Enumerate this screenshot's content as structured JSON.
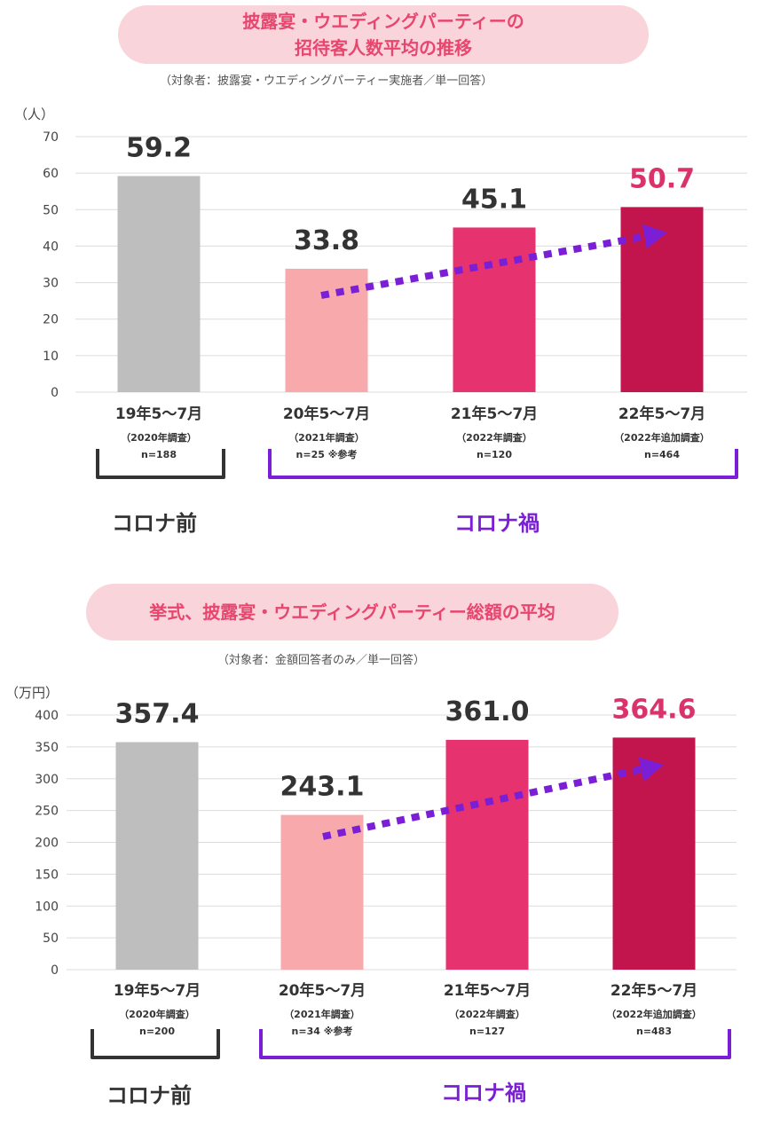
{
  "chart_data": [
    {
      "type": "bar",
      "title": [
        "披露宴・ウエディングパーティーの",
        "招待客人数平均の推移"
      ],
      "subtitle": "（対象者：披露宴・ウエディングパーティー実施者／単一回答）",
      "unit": "（人）",
      "ylim": [
        0,
        70
      ],
      "yticks": [
        0,
        10,
        20,
        30,
        40,
        50,
        60,
        70
      ],
      "categories": [
        "19年5～7月",
        "20年5～7月",
        "21年5～7月",
        "22年5～7月"
      ],
      "survey": [
        "（2020年調査）",
        "（2021年調査）",
        "（2022年調査）",
        "（2022年追加調査）"
      ],
      "n": [
        "n=188",
        "n=25 ※参考",
        "n=120",
        "n=464"
      ],
      "values": [
        59.2,
        33.8,
        45.1,
        50.7
      ],
      "value_labels": [
        "59.2",
        "33.8",
        "45.1",
        "50.7"
      ],
      "colors": [
        "#bebebe",
        "#f8a9ab",
        "#e63370",
        "#c2154e"
      ],
      "value_label_colors": [
        "#333333",
        "#333333",
        "#333333",
        "#d8336a"
      ],
      "groups": [
        "コロナ前",
        "コロナ禍"
      ],
      "group_colors": [
        "#333333",
        "#7a1fd6"
      ],
      "trend_arrow_color": "#7a1fd6",
      "grid": true
    },
    {
      "type": "bar",
      "title": [
        "挙式、披露宴・ウエディングパーティー総額の平均"
      ],
      "subtitle": "（対象者：金額回答者のみ／単一回答）",
      "unit": "（万円）",
      "ylim": [
        0,
        400
      ],
      "yticks": [
        0,
        50,
        100,
        150,
        200,
        250,
        300,
        350,
        400
      ],
      "categories": [
        "19年5～7月",
        "20年5～7月",
        "21年5～7月",
        "22年5～7月"
      ],
      "survey": [
        "（2020年調査）",
        "（2021年調査）",
        "（2022年調査）",
        "（2022年追加調査）"
      ],
      "n": [
        "n=200",
        "n=34 ※参考",
        "n=127",
        "n=483"
      ],
      "values": [
        357.4,
        243.1,
        361.0,
        364.6
      ],
      "value_labels": [
        "357.4",
        "243.1",
        "361.0",
        "364.6"
      ],
      "colors": [
        "#bebebe",
        "#f8a9ab",
        "#e63370",
        "#c2154e"
      ],
      "value_label_colors": [
        "#333333",
        "#333333",
        "#333333",
        "#d8336a"
      ],
      "groups": [
        "コロナ前",
        "コロナ禍"
      ],
      "group_colors": [
        "#333333",
        "#7a1fd6"
      ],
      "trend_arrow_color": "#7a1fd6",
      "grid": true
    }
  ]
}
